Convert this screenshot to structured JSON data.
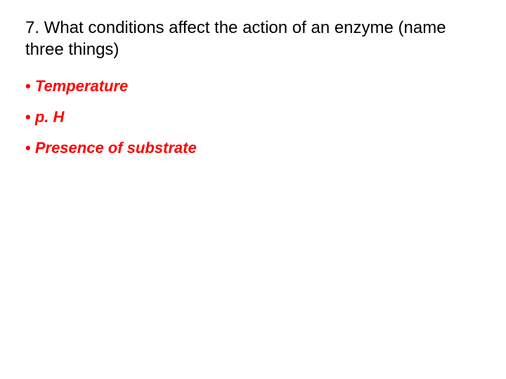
{
  "question": {
    "text": "7. What conditions affect the action of an enzyme (name three things)",
    "color": "#000000",
    "fontsize": 24
  },
  "answers": {
    "items": [
      {
        "label": "Temperature"
      },
      {
        "label": "p. H"
      },
      {
        "label": "Presence of substrate"
      }
    ],
    "color": "#ff0000",
    "fontsize": 22,
    "font_weight": "bold",
    "font_style": "italic",
    "bullet": "•"
  },
  "background_color": "#ffffff"
}
